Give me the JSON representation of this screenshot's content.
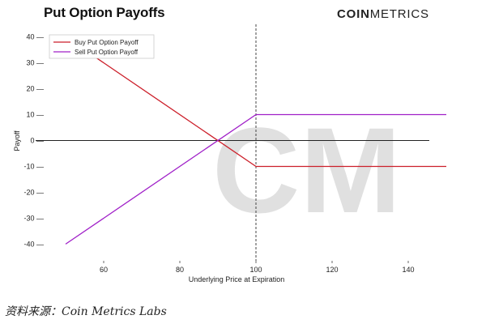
{
  "header": {
    "title": "Put Option Payoffs",
    "logo_bold": "COIN",
    "logo_light": "METRICS"
  },
  "watermark": {
    "text": "CM"
  },
  "source": "资料来源：Coin Metrics Labs",
  "chart_data": {
    "type": "line",
    "xlabel": "Underlying Price at Expiration",
    "ylabel": "Payoff",
    "xlim": [
      40,
      150
    ],
    "ylim": [
      -43,
      43
    ],
    "x_ticks": [
      60,
      80,
      100,
      120,
      140
    ],
    "y_ticks": [
      40,
      30,
      20,
      10,
      0,
      -10,
      -20,
      -30,
      -40
    ],
    "x_tick_labels": [
      "60",
      "80",
      "100",
      "120",
      "140"
    ],
    "y_tick_labels": [
      "40 —",
      "30 —",
      "20 —",
      "10 —",
      "0 —",
      "-10 —",
      "-20 —",
      "-30 —",
      "-40 —"
    ],
    "strike": 100,
    "grid": false,
    "legend_position": "top-left",
    "series": [
      {
        "name": "Buy Put Option Payoff",
        "color": "#cc1f2a",
        "x": [
          50,
          100,
          150
        ],
        "y": [
          40,
          -10,
          -10
        ]
      },
      {
        "name": "Sell Put Option Payoff",
        "color": "#a020c8",
        "x": [
          50,
          100,
          150
        ],
        "y": [
          -40,
          10,
          10
        ]
      }
    ],
    "zero_line_color": "#222222",
    "strike_line_color": "#444444"
  }
}
